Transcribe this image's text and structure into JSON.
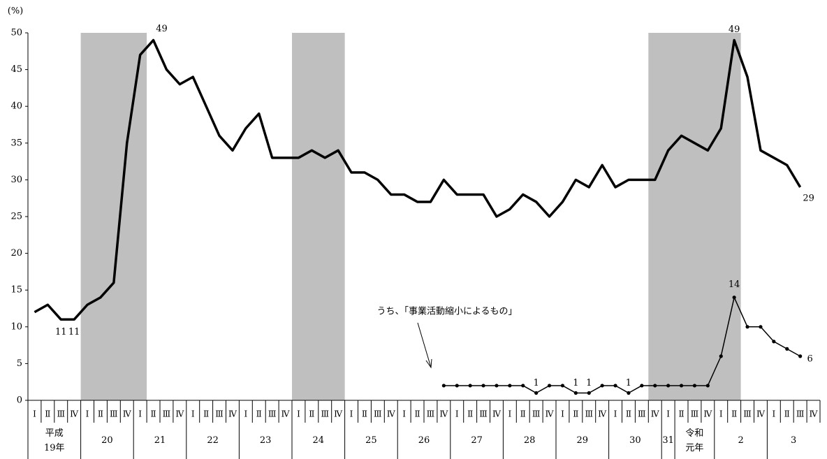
{
  "chart_data": {
    "type": "line",
    "y_unit": "(%)",
    "annotation": "うち、「事業活動縮小によるもの」",
    "categories": [
      "Ⅰ",
      "Ⅱ",
      "Ⅲ",
      "Ⅳ",
      "Ⅰ",
      "Ⅱ",
      "Ⅲ",
      "Ⅳ",
      "Ⅰ",
      "Ⅱ",
      "Ⅲ",
      "Ⅳ",
      "Ⅰ",
      "Ⅱ",
      "Ⅲ",
      "Ⅳ",
      "Ⅰ",
      "Ⅱ",
      "Ⅲ",
      "Ⅳ",
      "Ⅰ",
      "Ⅱ",
      "Ⅲ",
      "Ⅳ",
      "Ⅰ",
      "Ⅱ",
      "Ⅲ",
      "Ⅳ",
      "Ⅰ",
      "Ⅱ",
      "Ⅲ",
      "Ⅳ",
      "Ⅰ",
      "Ⅱ",
      "Ⅲ",
      "Ⅳ",
      "Ⅰ",
      "Ⅱ",
      "Ⅲ",
      "Ⅳ",
      "Ⅰ",
      "Ⅱ",
      "Ⅲ",
      "Ⅳ",
      "Ⅰ",
      "Ⅱ",
      "Ⅲ",
      "Ⅳ",
      "Ⅰ",
      "Ⅱ",
      "Ⅲ",
      "Ⅳ",
      "Ⅰ",
      "Ⅱ",
      "Ⅲ",
      "Ⅳ",
      "Ⅰ",
      "Ⅱ",
      "Ⅲ",
      "Ⅳ"
    ],
    "years": [
      "平成\n19年",
      null,
      null,
      null,
      "20",
      null,
      null,
      null,
      "21",
      null,
      null,
      null,
      "22",
      null,
      null,
      null,
      "23",
      null,
      null,
      null,
      "24",
      null,
      null,
      null,
      "25",
      null,
      null,
      null,
      "26",
      null,
      null,
      null,
      "27",
      null,
      null,
      null,
      "28",
      null,
      null,
      null,
      "29",
      null,
      null,
      null,
      "30",
      null,
      null,
      null,
      "31",
      "令和\n元年",
      null,
      null,
      "2",
      null,
      null,
      null,
      "3",
      null,
      null,
      null
    ],
    "series": [
      {
        "color": "#000000",
        "values": [
          12,
          13,
          11,
          11,
          13,
          14,
          16,
          35,
          47,
          49,
          45,
          43,
          44,
          40,
          36,
          34,
          37,
          39,
          33,
          33,
          33,
          34,
          33,
          34,
          31,
          31,
          30,
          28,
          28,
          27,
          27,
          30,
          28,
          28,
          28,
          25,
          26,
          28,
          27,
          25,
          27,
          30,
          29,
          32,
          29,
          30,
          30,
          30,
          34,
          36,
          35,
          34,
          37,
          49,
          44,
          34,
          33,
          32,
          29,
          null
        ]
      },
      {
        "name": "うち、「事業活動縮小によるもの」",
        "color": "#000000",
        "values": [
          null,
          null,
          null,
          null,
          null,
          null,
          null,
          null,
          null,
          null,
          null,
          null,
          null,
          null,
          null,
          null,
          null,
          null,
          null,
          null,
          null,
          null,
          null,
          null,
          null,
          null,
          null,
          null,
          null,
          null,
          null,
          2,
          2,
          2,
          2,
          2,
          2,
          2,
          1,
          2,
          2,
          1,
          1,
          2,
          2,
          1,
          2,
          2,
          2,
          2,
          2,
          2,
          6,
          14,
          10,
          10,
          8,
          7,
          6,
          null
        ]
      }
    ],
    "ylim": [
      0,
      50
    ],
    "yticks": [
      0,
      5,
      10,
      15,
      20,
      25,
      30,
      35,
      40,
      45,
      50
    ]
  }
}
